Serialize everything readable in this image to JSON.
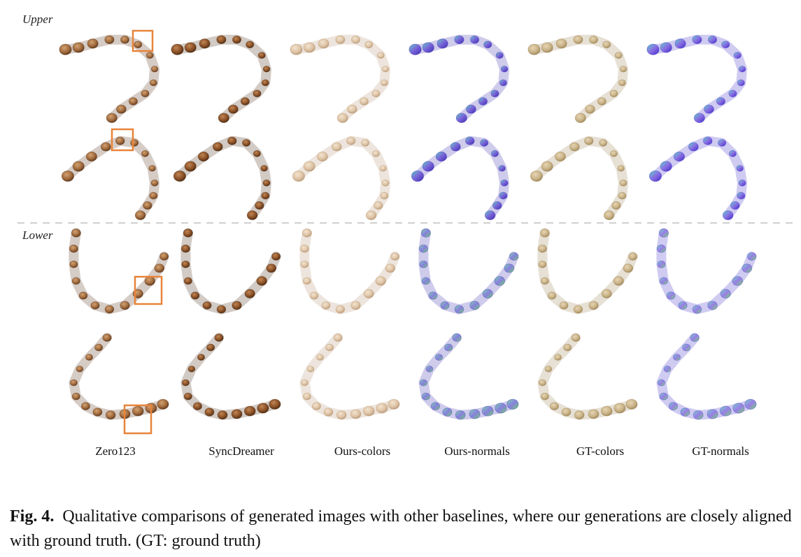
{
  "sections": {
    "upper": "Upper",
    "lower": "Lower"
  },
  "columns": [
    "Zero123",
    "SyncDreamer",
    "Ours-colors",
    "Ours-normals",
    "GT-colors",
    "GT-normals"
  ],
  "caption": {
    "label": "Fig. 4.",
    "text": "Qualitative comparisons of generated images with other baselines, where our generations are closely aligned with ground truth. (GT: ground truth)"
  },
  "colors": {
    "zero123": "#a06a3c",
    "syncdreamer": "#8a5026",
    "ours_colors": "#ddc3a4",
    "ours_normals": "#7a63d9",
    "gt_colors": "#c9b287",
    "gt_normals": "#8a6ee3",
    "highlight_box": "#e8843a",
    "divider": "#d0d0d0"
  }
}
